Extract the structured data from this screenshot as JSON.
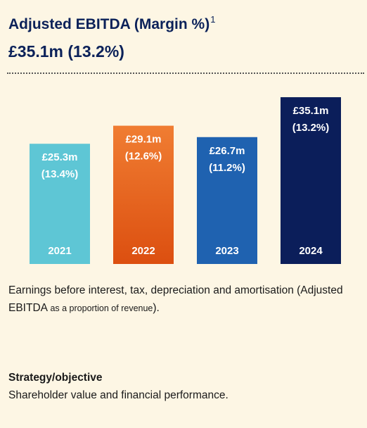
{
  "header": {
    "title": "Adjusted EBITDA (Margin %)",
    "footnote_marker": "1",
    "headline": "£35.1m (13.2%)"
  },
  "chart_data": {
    "type": "bar",
    "categories": [
      "2021",
      "2022",
      "2023",
      "2024"
    ],
    "values": [
      25.3,
      29.1,
      26.7,
      35.1
    ],
    "value_labels": [
      "£25.3m",
      "£29.1m",
      "£26.7m",
      "£35.1m"
    ],
    "margin_labels": [
      "(13.4%)",
      "(12.6%)",
      "(11.2%)",
      "(13.2%)"
    ],
    "colors": [
      "#5ec6d5",
      "#e8601f",
      "#1f62b0",
      "#0b1e5a"
    ],
    "unit": "£m",
    "grid": false,
    "legend": "none"
  },
  "description": {
    "text": "Earnings before interest, tax, depreciation and amortisation (Adjusted EBITDA",
    "small": "as a proportion of revenue",
    "tail": ")."
  },
  "strategy": {
    "label": "Strategy/objective",
    "text": "Shareholder value and financial performance."
  }
}
